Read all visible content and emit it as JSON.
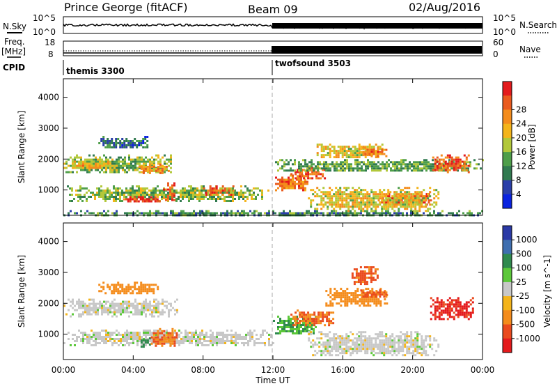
{
  "header": {
    "station": "Prince George (fitACF)",
    "beam": "Beam 09",
    "date": "02/Aug/2016"
  },
  "aux_panels": {
    "nsky": {
      "label": "N.Sky",
      "ticks": [
        "10^5",
        "10^0"
      ]
    },
    "nsearch": {
      "label": "N.Search",
      "ticks": [
        "10^5",
        "10^0"
      ]
    },
    "freq": {
      "label_line1": "Freq.",
      "label_line2": "[MHz]",
      "ticks": [
        "18",
        "8"
      ]
    },
    "nave": {
      "label": "Nave",
      "ticks": [
        "60",
        "0"
      ]
    },
    "cpid": {
      "label": "CPID",
      "segments": [
        {
          "name": "themis 3300",
          "start_hour": 0,
          "end_hour": 12
        },
        {
          "name": "twofsound 3503",
          "start_hour": 12,
          "end_hour": 24
        }
      ]
    }
  },
  "chart_data": [
    {
      "type": "heatmap",
      "name": "power",
      "ylabel": "Slant Range [km]",
      "xlim": [
        0,
        24
      ],
      "ylim": [
        180,
        4600
      ],
      "yticks": [
        "1000",
        "2000",
        "3000",
        "4000"
      ],
      "ytick_values": [
        1000,
        2000,
        3000,
        4000
      ],
      "colorbar": {
        "label": "Power [dB]",
        "ticks": [
          "4",
          "8",
          "12",
          "16",
          "20",
          "24",
          "28"
        ],
        "colors": [
          "#0a23e0",
          "#2a3fa8",
          "#317a50",
          "#4e9e4a",
          "#b2c83a",
          "#f4b41a",
          "#f48c1c",
          "#ea5a1e",
          "#e41a1c"
        ]
      },
      "regions": [
        {
          "t0": 0.0,
          "t1": 6.2,
          "r0": 1550,
          "r1": 2150,
          "value": 14
        },
        {
          "t0": 0.0,
          "t1": 3.0,
          "r0": 1700,
          "r1": 1950,
          "value": 20
        },
        {
          "t0": 4.3,
          "t1": 6.0,
          "r0": 1550,
          "r1": 1850,
          "value": 22
        },
        {
          "t0": 2.0,
          "t1": 4.8,
          "r0": 2350,
          "r1": 2750,
          "value": 8
        },
        {
          "t0": 0.2,
          "t1": 11.8,
          "r0": 650,
          "r1": 1150,
          "value": 14
        },
        {
          "t0": 3.3,
          "t1": 5.7,
          "r0": 600,
          "r1": 800,
          "value": 28
        },
        {
          "t0": 5.7,
          "t1": 6.4,
          "r0": 700,
          "r1": 1250,
          "value": 26
        },
        {
          "t0": 8.0,
          "t1": 9.7,
          "r0": 850,
          "r1": 1150,
          "value": 26
        },
        {
          "t0": 12.0,
          "t1": 14.0,
          "r0": 1000,
          "r1": 1500,
          "value": 24
        },
        {
          "t0": 13.0,
          "t1": 15.0,
          "r0": 1350,
          "r1": 1750,
          "value": 26
        },
        {
          "t0": 12.0,
          "t1": 24.0,
          "r0": 1600,
          "r1": 2000,
          "value": 12
        },
        {
          "t0": 14.5,
          "t1": 18.3,
          "r0": 2050,
          "r1": 2500,
          "value": 18
        },
        {
          "t0": 17.0,
          "t1": 18.5,
          "r0": 2100,
          "r1": 2400,
          "value": 24
        },
        {
          "t0": 21.0,
          "t1": 23.2,
          "r0": 1600,
          "r1": 2150,
          "value": 26
        },
        {
          "t0": 18.0,
          "t1": 21.0,
          "r0": 500,
          "r1": 900,
          "value": 28
        },
        {
          "t0": 14.0,
          "t1": 21.5,
          "r0": 300,
          "r1": 1100,
          "value": 18
        },
        {
          "t0": 0.0,
          "t1": 24.0,
          "r0": 180,
          "r1": 350,
          "value": 10
        }
      ]
    },
    {
      "type": "heatmap",
      "name": "velocity",
      "ylabel": "Slant Range [km]",
      "xlabel": "Time UT",
      "xlim": [
        0,
        24
      ],
      "ylim": [
        180,
        4600
      ],
      "xticks": [
        "00:00",
        "04:00",
        "08:00",
        "12:00",
        "16:00",
        "20:00",
        "00:00"
      ],
      "xtick_values": [
        0,
        4,
        8,
        12,
        16,
        20,
        24
      ],
      "yticks": [
        "1000",
        "2000",
        "3000",
        "4000"
      ],
      "ytick_values": [
        1000,
        2000,
        3000,
        4000
      ],
      "colorbar": {
        "label": "Velocity [m s^-1]",
        "ticks": [
          "1000",
          "500",
          "100",
          "25",
          "-25",
          "-100",
          "-500",
          "-1000"
        ],
        "tick_values": [
          1000,
          500,
          100,
          25,
          -25,
          -100,
          -500,
          -1000
        ],
        "colors": [
          "#2b3aa6",
          "#3f6fb0",
          "#2f8a4e",
          "#5cc83a",
          "#c8c8c8",
          "#f4b41a",
          "#f48c1c",
          "#ea4a1e",
          "#e41a1c"
        ]
      },
      "regions": [
        {
          "t0": 0.0,
          "t1": 6.5,
          "r0": 1600,
          "r1": 2150,
          "value": 0
        },
        {
          "t0": 0.0,
          "t1": 12.0,
          "r0": 650,
          "r1": 1150,
          "value": 0
        },
        {
          "t0": 2.0,
          "t1": 5.5,
          "r0": 2300,
          "r1": 2700,
          "value": -150
        },
        {
          "t0": 4.3,
          "t1": 4.9,
          "r0": 600,
          "r1": 900,
          "value": 120
        },
        {
          "t0": 5.0,
          "t1": 6.5,
          "r0": 600,
          "r1": 1200,
          "value": -300
        },
        {
          "t0": 12.0,
          "t1": 14.5,
          "r0": 1000,
          "r1": 1600,
          "value": 60
        },
        {
          "t0": 13.0,
          "t1": 15.5,
          "r0": 1300,
          "r1": 1800,
          "value": -300
        },
        {
          "t0": 15.0,
          "t1": 18.5,
          "r0": 1900,
          "r1": 2500,
          "value": -200
        },
        {
          "t0": 17.0,
          "t1": 18.5,
          "r0": 2200,
          "r1": 2450,
          "value": -400
        },
        {
          "t0": 21.0,
          "t1": 23.5,
          "r0": 1500,
          "r1": 2200,
          "value": -900
        },
        {
          "t0": 14.0,
          "t1": 21.5,
          "r0": 300,
          "r1": 1100,
          "value": 0
        },
        {
          "t0": 16.5,
          "t1": 18.0,
          "r0": 2600,
          "r1": 3200,
          "value": -400
        }
      ]
    }
  ]
}
